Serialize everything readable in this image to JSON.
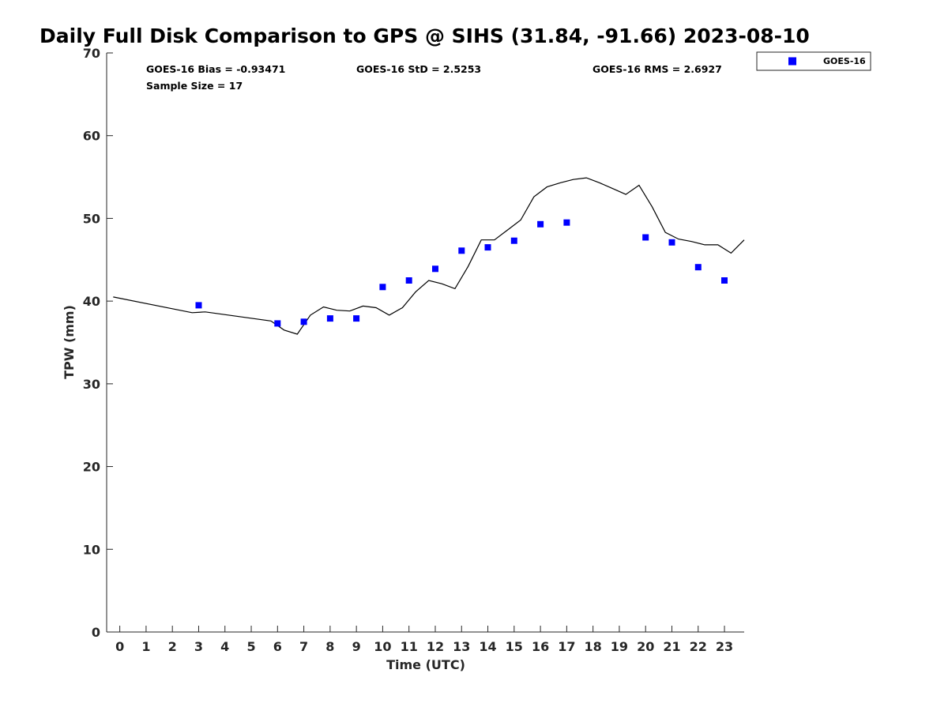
{
  "chart_data": {
    "type": "scatter",
    "title": "Daily Full Disk Comparison to GPS @ SIHS (31.84, -91.66) 2023-08-10",
    "xlabel": "Time (UTC)",
    "ylabel": "TPW (mm)",
    "xlim": [
      -0.5,
      23.75
    ],
    "ylim": [
      0,
      70
    ],
    "x_ticks": [
      0,
      1,
      2,
      3,
      4,
      5,
      6,
      7,
      8,
      9,
      10,
      11,
      12,
      13,
      14,
      15,
      16,
      17,
      18,
      19,
      20,
      21,
      22,
      23
    ],
    "y_ticks": [
      0,
      10,
      20,
      30,
      40,
      50,
      60,
      70
    ],
    "grid": false,
    "legend_position": "outside-top-right",
    "stats": {
      "bias": "GOES-16 Bias = -0.93471",
      "std": "GOES-16 StD = 2.5253",
      "rms": "GOES-16 RMS = 2.6927",
      "sample_size": "Sample Size = 17"
    },
    "series": [
      {
        "name": "GOES-16",
        "kind": "scatter",
        "marker": "square",
        "color": "#0000ff",
        "x": [
          3,
          6,
          7,
          8,
          9,
          10,
          11,
          12,
          13,
          14,
          15,
          16,
          17,
          20,
          21,
          22,
          23
        ],
        "y": [
          39.5,
          37.3,
          37.5,
          37.9,
          37.9,
          41.7,
          42.5,
          43.9,
          46.1,
          46.5,
          47.3,
          49.3,
          49.5,
          47.7,
          47.1,
          44.1,
          42.5
        ]
      },
      {
        "kind": "line",
        "color": "#000000",
        "x": [
          -0.25,
          2.75,
          3.25,
          5.75,
          6.25,
          6.75,
          7.25,
          7.75,
          8.25,
          8.75,
          9.25,
          9.75,
          10.25,
          10.75,
          11.25,
          11.75,
          12.25,
          12.75,
          13.25,
          13.75,
          14.25,
          14.75,
          15.25,
          15.75,
          16.25,
          16.75,
          17.25,
          17.75,
          18.25,
          18.75,
          19.25,
          19.75,
          20.25,
          20.75,
          21.25,
          21.75,
          22.25,
          22.75,
          23.25,
          23.75
        ],
        "y": [
          40.5,
          38.6,
          38.7,
          37.6,
          36.5,
          36.0,
          38.3,
          39.3,
          38.9,
          38.8,
          39.4,
          39.2,
          38.3,
          39.2,
          41.1,
          42.5,
          42.1,
          41.5,
          44.2,
          47.4,
          47.4,
          48.6,
          49.8,
          52.6,
          53.8,
          54.3,
          54.7,
          54.9,
          54.3,
          53.6,
          52.9,
          54.0,
          51.4,
          48.3,
          47.5,
          47.2,
          46.8,
          46.8,
          45.8,
          47.4
        ]
      }
    ]
  }
}
